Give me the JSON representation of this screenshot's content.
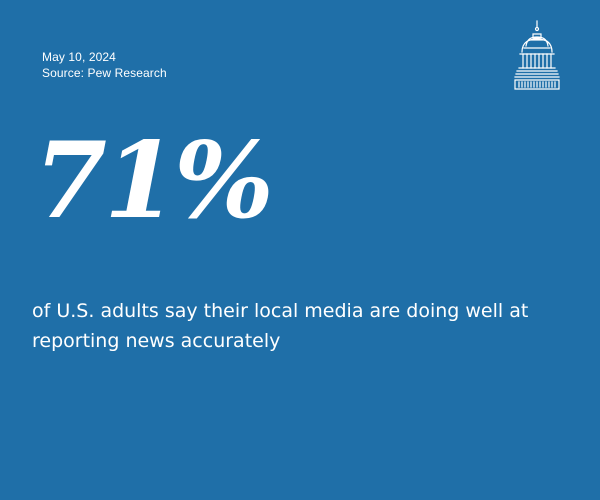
{
  "card": {
    "date": "May 10, 2024",
    "source": "Source: Pew Research",
    "stat": "71%",
    "description": "of U.S. adults say their local media are doing well at reporting news accurately",
    "logo_icon": "capitol-dome-icon",
    "colors": {
      "background": "#1f6fa8",
      "text": "#ffffff"
    }
  }
}
